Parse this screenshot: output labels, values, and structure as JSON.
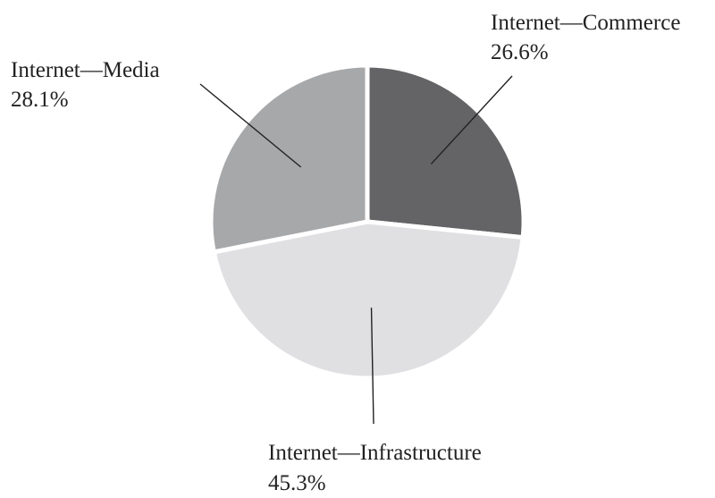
{
  "chart_data": {
    "type": "pie",
    "slices": [
      {
        "name": "Internet—Commerce",
        "value": 26.6,
        "label": "26.6%",
        "color": "#646466"
      },
      {
        "name": "Internet—Infrastructure",
        "value": 45.3,
        "label": "45.3%",
        "color": "#e0e0e2"
      },
      {
        "name": "Internet—Media",
        "value": 28.1,
        "label": "28.1%",
        "color": "#a7a8aa"
      }
    ],
    "start_direction": "12 o'clock",
    "direction": "clockwise",
    "slice_separator_color": "#ffffff",
    "leader_line_color": "#222222"
  }
}
